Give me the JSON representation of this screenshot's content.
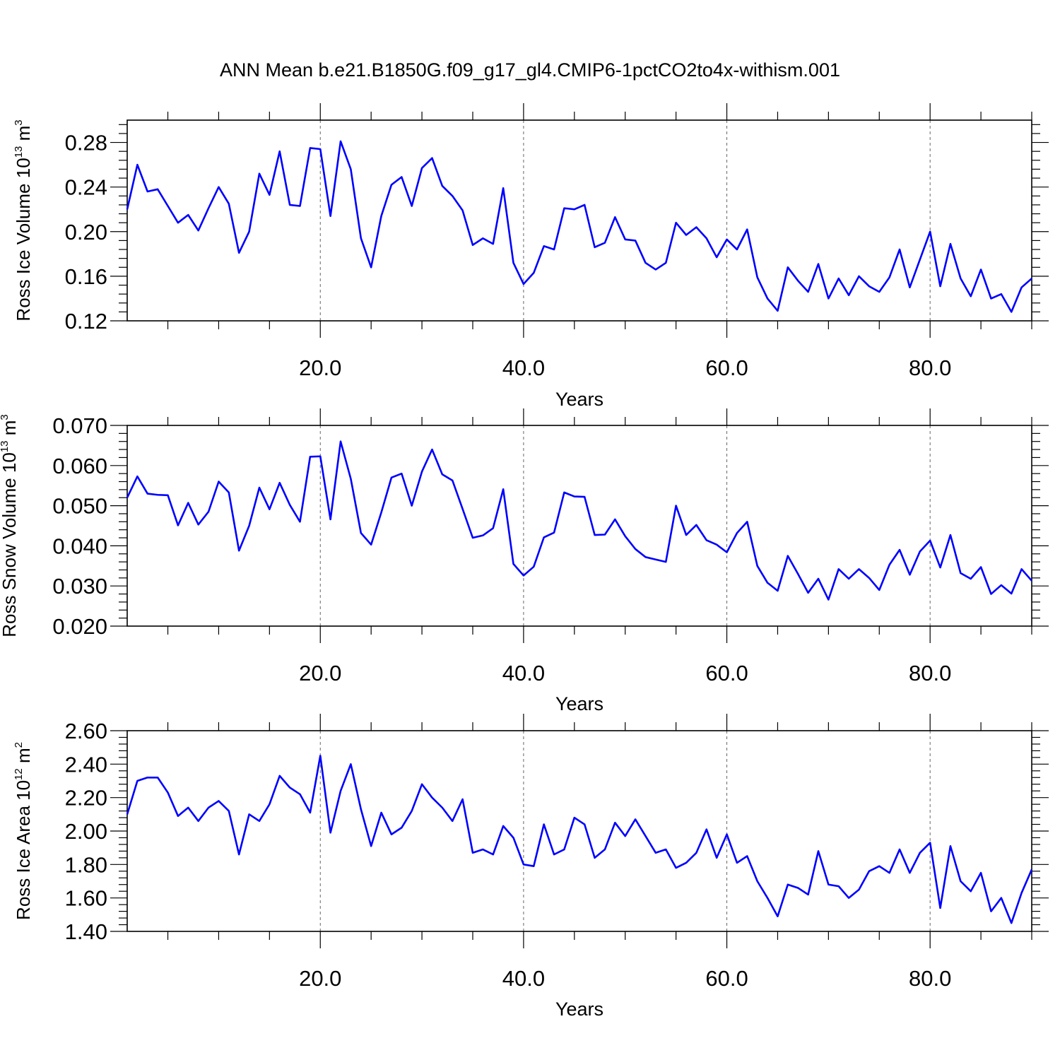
{
  "figure": {
    "title": "ANN Mean b.e21.B1850G.f09_g17_gl4.CMIP6-1pctCO2to4x-withism.001"
  },
  "chart_data": [
    {
      "type": "line",
      "title": "",
      "xlabel": "Years",
      "ylabel": {
        "text": "Ross Ice Volume 10",
        "exp": "13",
        "unit": " m",
        "unit_exp": "3"
      },
      "xlim": [
        1,
        90
      ],
      "ylim": [
        0.12,
        0.3
      ],
      "x_ticks": [
        20,
        40,
        60,
        80
      ],
      "x_tick_labels": [
        "20.0",
        "40.0",
        "60.0",
        "80.0"
      ],
      "y_ticks": [
        0.12,
        0.16,
        0.2,
        0.24,
        0.28
      ],
      "y_tick_labels": [
        "0.12",
        "0.16",
        "0.20",
        "0.24",
        "0.28"
      ],
      "grid": "vertical dashed at x ticks",
      "series_color": "#0000ff",
      "series": [
        {
          "values": [
            0.22,
            0.26,
            0.236,
            0.238,
            0.223,
            0.208,
            0.215,
            0.201,
            0.221,
            0.24,
            0.225,
            0.181,
            0.2,
            0.252,
            0.233,
            0.272,
            0.224,
            0.223,
            0.275,
            0.274,
            0.214,
            0.281,
            0.256,
            0.194,
            0.168,
            0.214,
            0.242,
            0.249,
            0.223,
            0.257,
            0.266,
            0.241,
            0.232,
            0.219,
            0.188,
            0.194,
            0.189,
            0.239,
            0.172,
            0.153,
            0.163,
            0.187,
            0.184,
            0.221,
            0.22,
            0.224,
            0.186,
            0.19,
            0.213,
            0.193,
            0.192,
            0.172,
            0.166,
            0.172,
            0.208,
            0.197,
            0.204,
            0.194,
            0.177,
            0.193,
            0.184,
            0.202,
            0.159,
            0.14,
            0.129,
            0.168,
            0.156,
            0.146,
            0.171,
            0.14,
            0.158,
            0.143,
            0.16,
            0.151,
            0.146,
            0.159,
            0.184,
            0.15,
            0.175,
            0.2,
            0.151,
            0.189,
            0.158,
            0.142,
            0.166,
            0.14,
            0.144,
            0.128,
            0.15,
            0.158
          ]
        }
      ]
    },
    {
      "type": "line",
      "title": "",
      "xlabel": "Years",
      "ylabel": {
        "text": "Ross Snow Volume 10",
        "exp": "13",
        "unit": " m",
        "unit_exp": "3"
      },
      "xlim": [
        1,
        90
      ],
      "ylim": [
        0.02,
        0.07
      ],
      "x_ticks": [
        20,
        40,
        60,
        80
      ],
      "x_tick_labels": [
        "20.0",
        "40.0",
        "60.0",
        "80.0"
      ],
      "y_ticks": [
        0.02,
        0.03,
        0.04,
        0.05,
        0.06,
        0.07
      ],
      "y_tick_labels": [
        "0.020",
        "0.030",
        "0.040",
        "0.050",
        "0.060",
        "0.070"
      ],
      "grid": "vertical dashed at x ticks",
      "series_color": "#0000ff",
      "series": [
        {
          "values": [
            0.052,
            0.0573,
            0.053,
            0.0527,
            0.0526,
            0.0451,
            0.0507,
            0.0453,
            0.0485,
            0.056,
            0.0533,
            0.0388,
            0.045,
            0.0545,
            0.0491,
            0.0557,
            0.0502,
            0.046,
            0.0622,
            0.0623,
            0.0466,
            0.066,
            0.0567,
            0.0432,
            0.0403,
            0.0483,
            0.057,
            0.058,
            0.05,
            0.0585,
            0.064,
            0.0578,
            0.0563,
            0.0492,
            0.042,
            0.0426,
            0.0444,
            0.0541,
            0.0355,
            0.0326,
            0.0348,
            0.0421,
            0.0433,
            0.0533,
            0.0523,
            0.0522,
            0.0427,
            0.0428,
            0.0466,
            0.0424,
            0.0392,
            0.0372,
            0.0366,
            0.036,
            0.05,
            0.0427,
            0.0452,
            0.0414,
            0.0403,
            0.0384,
            0.0432,
            0.046,
            0.035,
            0.0308,
            0.0288,
            0.0375,
            0.033,
            0.0283,
            0.0318,
            0.0266,
            0.0342,
            0.0318,
            0.0342,
            0.032,
            0.029,
            0.0353,
            0.039,
            0.0328,
            0.0386,
            0.0413,
            0.0346,
            0.0427,
            0.0332,
            0.0318,
            0.0347,
            0.028,
            0.0302,
            0.0281,
            0.0342,
            0.0313
          ]
        }
      ]
    },
    {
      "type": "line",
      "title": "",
      "xlabel": "Years",
      "ylabel": {
        "text": "Ross Ice Area 10",
        "exp": "12",
        "unit": " m",
        "unit_exp": "2"
      },
      "xlim": [
        1,
        90
      ],
      "ylim": [
        1.4,
        2.6
      ],
      "x_ticks": [
        20,
        40,
        60,
        80
      ],
      "x_tick_labels": [
        "20.0",
        "40.0",
        "60.0",
        "80.0"
      ],
      "y_ticks": [
        1.4,
        1.6,
        1.8,
        2.0,
        2.2,
        2.4,
        2.6
      ],
      "y_tick_labels": [
        "1.40",
        "1.60",
        "1.80",
        "2.00",
        "2.20",
        "2.40",
        "2.60"
      ],
      "grid": "vertical dashed at x ticks",
      "series_color": "#0000ff",
      "series": [
        {
          "values": [
            2.1,
            2.3,
            2.32,
            2.32,
            2.23,
            2.09,
            2.14,
            2.06,
            2.14,
            2.18,
            2.12,
            1.86,
            2.1,
            2.06,
            2.16,
            2.33,
            2.26,
            2.22,
            2.11,
            2.45,
            1.99,
            2.24,
            2.4,
            2.13,
            1.91,
            2.11,
            1.98,
            2.02,
            2.12,
            2.28,
            2.2,
            2.14,
            2.06,
            2.19,
            1.87,
            1.89,
            1.86,
            2.03,
            1.96,
            1.8,
            1.79,
            2.04,
            1.86,
            1.89,
            2.08,
            2.04,
            1.84,
            1.89,
            2.05,
            1.97,
            2.07,
            1.97,
            1.87,
            1.89,
            1.78,
            1.81,
            1.87,
            2.01,
            1.84,
            1.98,
            1.81,
            1.85,
            1.7,
            1.6,
            1.49,
            1.68,
            1.66,
            1.62,
            1.88,
            1.68,
            1.67,
            1.6,
            1.65,
            1.76,
            1.79,
            1.75,
            1.89,
            1.75,
            1.87,
            1.93,
            1.54,
            1.91,
            1.7,
            1.64,
            1.75,
            1.52,
            1.6,
            1.45,
            1.63,
            1.77
          ]
        }
      ]
    }
  ]
}
